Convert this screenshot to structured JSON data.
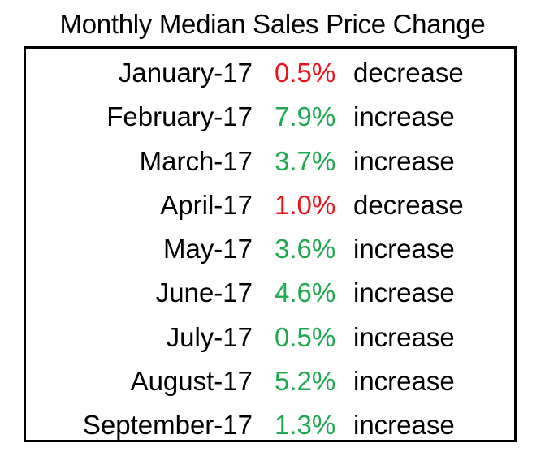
{
  "title": "Monthly Median Sales Price Change",
  "colors": {
    "decrease": "#e8141b",
    "increase": "#1fa84f",
    "text": "#000000",
    "border": "#000000"
  },
  "rows": [
    {
      "month": "January-17",
      "pct": "0.5%",
      "dir": "decrease"
    },
    {
      "month": "February-17",
      "pct": "7.9%",
      "dir": "increase"
    },
    {
      "month": "March-17",
      "pct": "3.7%",
      "dir": "increase"
    },
    {
      "month": "April-17",
      "pct": "1.0%",
      "dir": "decrease"
    },
    {
      "month": "May-17",
      "pct": "3.6%",
      "dir": "increase"
    },
    {
      "month": "June-17",
      "pct": "4.6%",
      "dir": "increase"
    },
    {
      "month": "July-17",
      "pct": "0.5%",
      "dir": "increase"
    },
    {
      "month": "August-17",
      "pct": "5.2%",
      "dir": "increase"
    },
    {
      "month": "September-17",
      "pct": "1.3%",
      "dir": "increase"
    }
  ]
}
